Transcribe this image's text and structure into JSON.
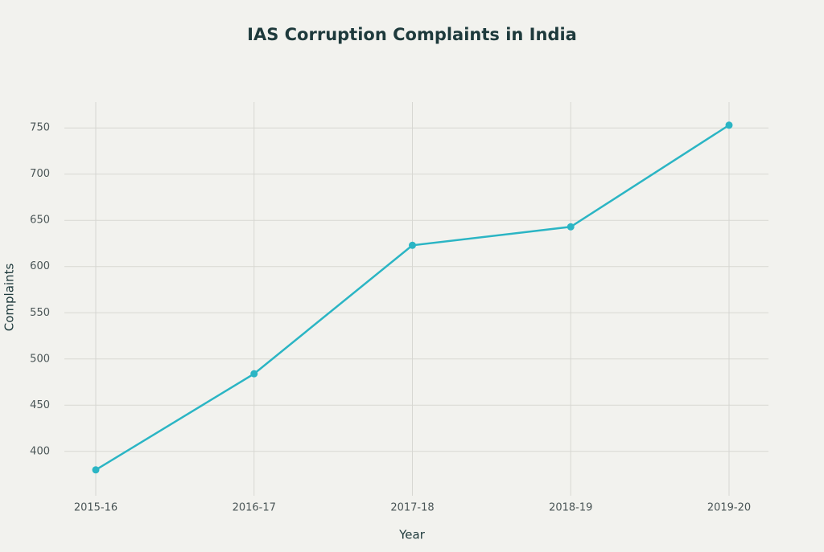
{
  "chart_data": {
    "type": "line",
    "title": "IAS Corruption Complaints in India",
    "x_label": "Year",
    "y_label": "Complaints",
    "categories": [
      "2015-16",
      "2016-17",
      "2017-18",
      "2018-19",
      "2019-20"
    ],
    "series": [
      {
        "name": "Complaints",
        "color": "#2bb5c4",
        "values": [
          380,
          484,
          623,
          643,
          753
        ]
      }
    ],
    "ylim": [
      352,
      778
    ],
    "yticks": [
      400,
      450,
      500,
      550,
      600,
      650,
      700,
      750
    ],
    "grid": true
  }
}
